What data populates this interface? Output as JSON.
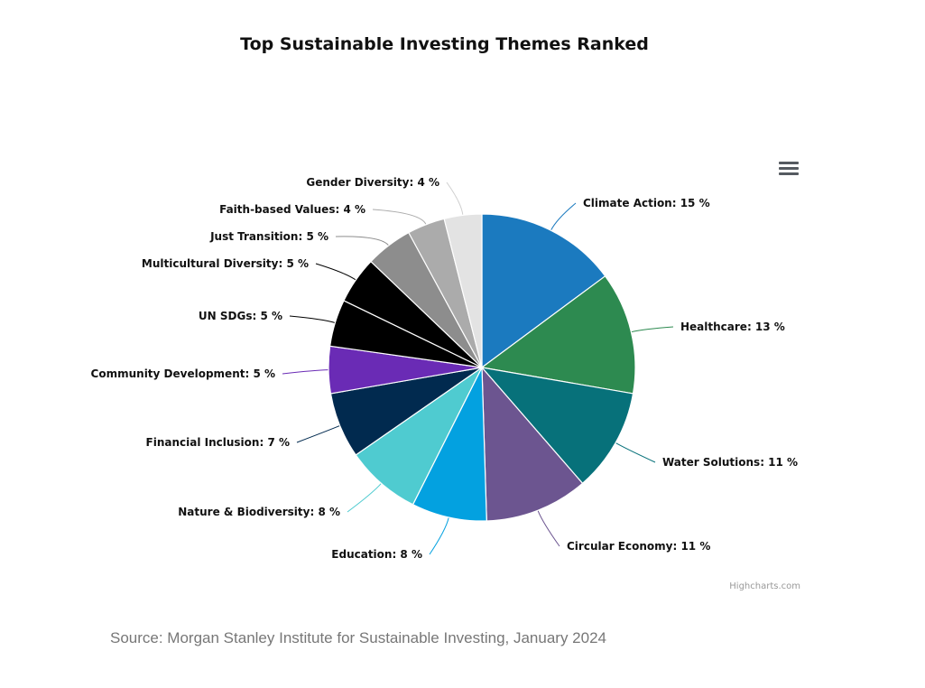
{
  "title": "Top Sustainable Investing Themes Ranked",
  "source": "Source: Morgan Stanley Institute for Sustainable Investing, January 2024",
  "credits": "Highcharts.com",
  "menu": {
    "icon": "hamburger-menu-icon"
  },
  "chart_data": {
    "type": "pie",
    "title": "Top Sustainable Investing Themes Ranked",
    "unit": "%",
    "slices": [
      {
        "name": "Climate Action",
        "value": 15,
        "label": "Climate Action: 15 %",
        "color": "#1b7abf"
      },
      {
        "name": "Healthcare",
        "value": 13,
        "label": "Healthcare: 13 %",
        "color": "#2d8a50"
      },
      {
        "name": "Water Solutions",
        "value": 11,
        "label": "Water Solutions: 11 %",
        "color": "#07717a"
      },
      {
        "name": "Circular Economy",
        "value": 11,
        "label": "Circular Economy: 11 %",
        "color": "#6c5590"
      },
      {
        "name": "Education",
        "value": 8,
        "label": "Education: 8 %",
        "color": "#03a1e0"
      },
      {
        "name": "Nature & Biodiversity",
        "value": 8,
        "label": "Nature & Biodiversity: 8 %",
        "color": "#4fcbd0"
      },
      {
        "name": "Financial Inclusion",
        "value": 7,
        "label": "Financial Inclusion: 7 %",
        "color": "#012a4f"
      },
      {
        "name": "Community Development",
        "value": 5,
        "label": "Community Development: 5 %",
        "color": "#6a2bb5"
      },
      {
        "name": "UN SDGs",
        "value": 5,
        "label": "UN SDGs: 5 %",
        "color": "#000000"
      },
      {
        "name": "Multicultural Diversity",
        "value": 5,
        "label": "Multicultural Diversity: 5 %",
        "color": "#000000"
      },
      {
        "name": "Just Transition",
        "value": 5,
        "label": "Just Transition: 5 %",
        "color": "#8d8d8d"
      },
      {
        "name": "Faith-based Values",
        "value": 4,
        "label": "Faith-based Values: 4 %",
        "color": "#ababab"
      },
      {
        "name": "Gender Diversity",
        "value": 4,
        "label": "Gender Diversity: 4 %",
        "color": "#e3e3e3"
      }
    ]
  }
}
